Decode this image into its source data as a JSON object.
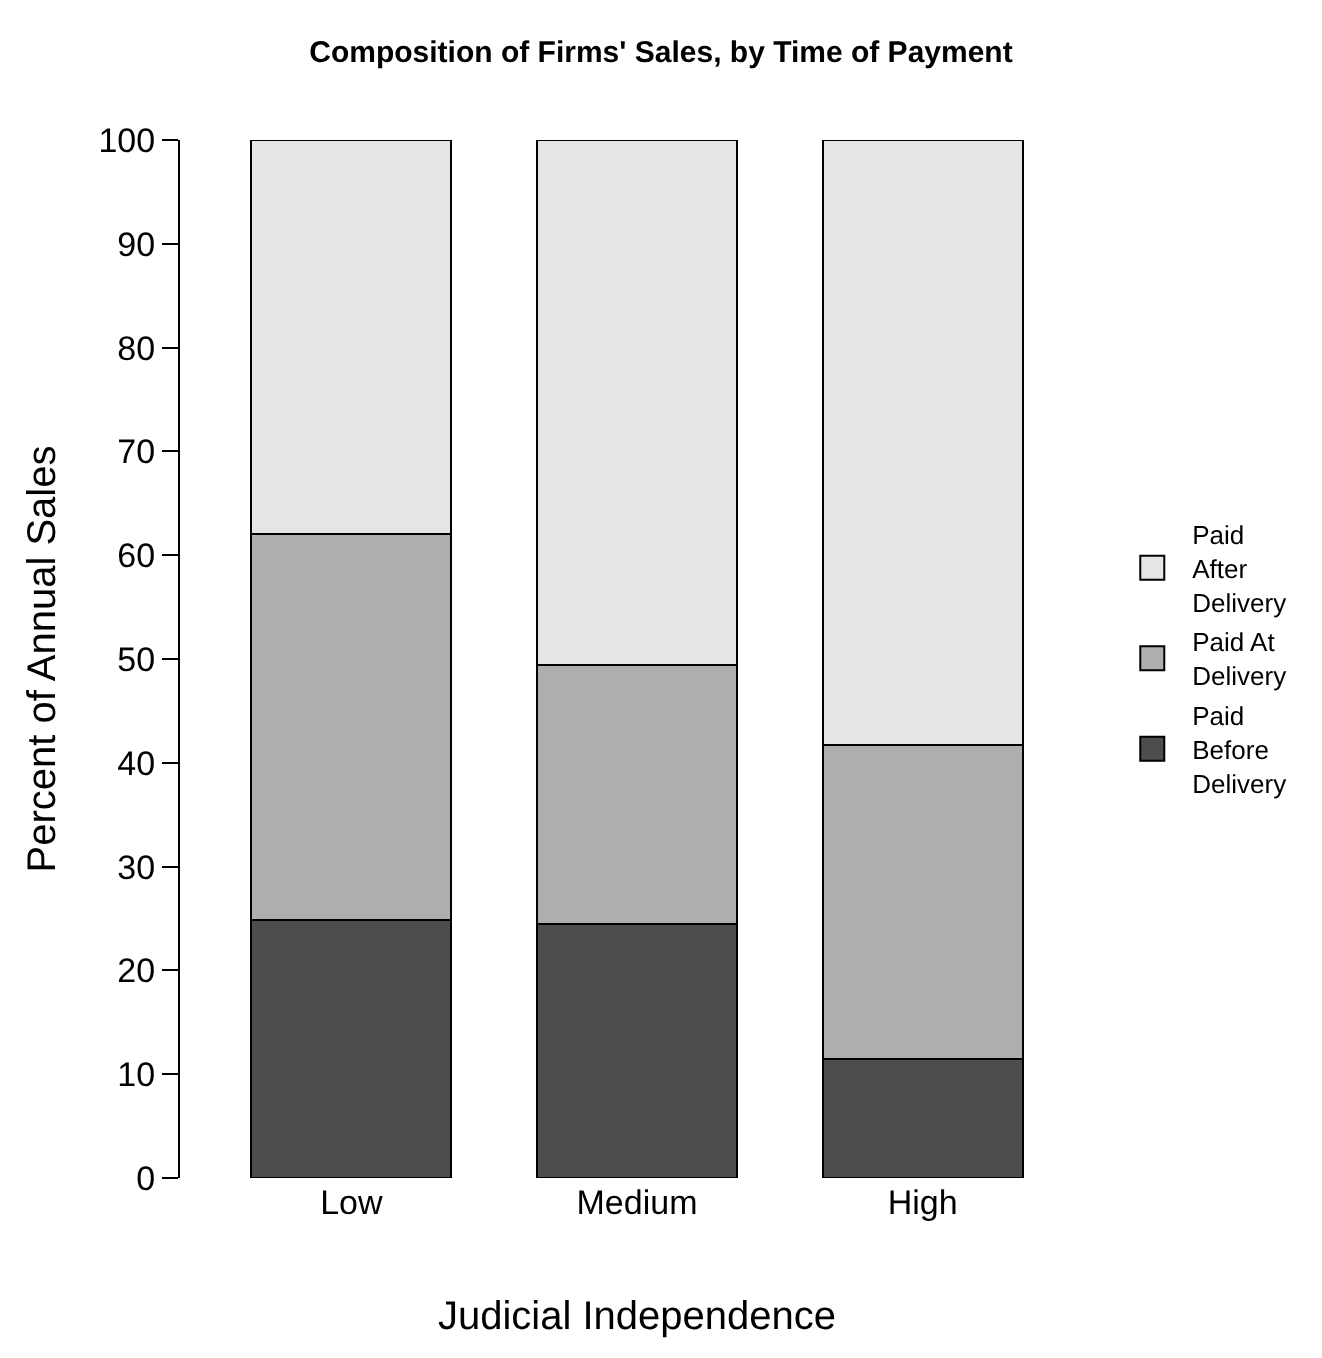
{
  "chart_data": {
    "type": "bar",
    "stacked": true,
    "title": "Composition of Firms' Sales, by Time of Payment",
    "xlabel": "Judicial Independence",
    "ylabel": "Percent of Annual Sales",
    "categories": [
      "Low",
      "Medium",
      "High"
    ],
    "series": [
      {
        "name": "Paid Before Delivery",
        "color": "#4d4d4d",
        "values": [
          24.9,
          24.5,
          11.5
        ]
      },
      {
        "name": "Paid At Delivery",
        "color": "#aeaeae",
        "values": [
          37.1,
          24.9,
          30.2
        ]
      },
      {
        "name": "Paid After Delivery",
        "color": "#e5e5e5",
        "values": [
          38.0,
          50.6,
          58.3
        ]
      }
    ],
    "ylim": [
      0,
      100
    ],
    "yticks": [
      0,
      10,
      20,
      30,
      40,
      50,
      60,
      70,
      80,
      90,
      100
    ],
    "legend": "right"
  }
}
